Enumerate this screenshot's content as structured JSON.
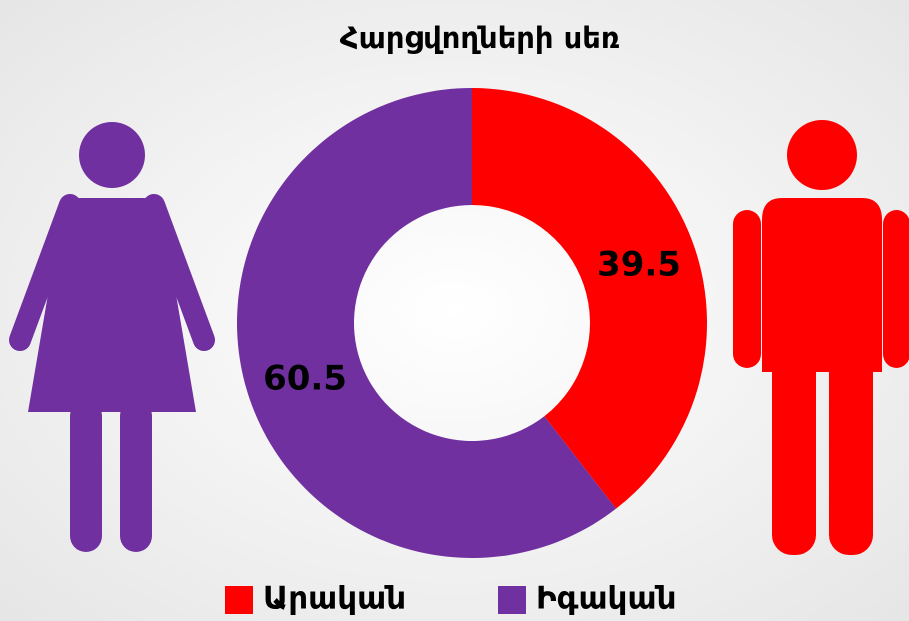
{
  "chart_data": {
    "type": "donut",
    "title": "Հարցվողների սեռ",
    "categories": [
      "Արական",
      "Իգական"
    ],
    "values": [
      39.5,
      60.5
    ],
    "colors": [
      "#ff0000",
      "#7030a0"
    ],
    "legend": "bottom"
  }
}
